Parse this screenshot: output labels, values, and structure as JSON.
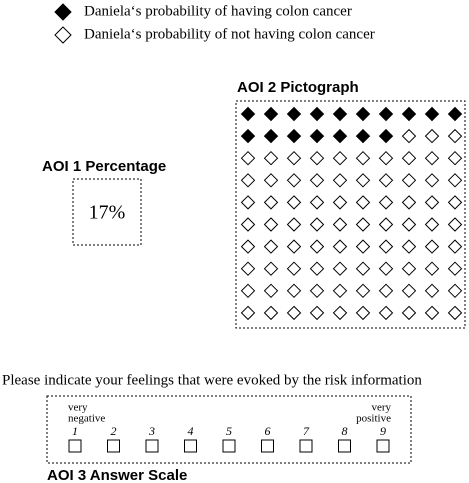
{
  "legend": [
    {
      "label": "Daniela‘s probability of having colon cancer"
    },
    {
      "label": "Daniela‘s probability of not having colon cancer"
    }
  ],
  "aoi1": {
    "title": "AOI 1 Percentage",
    "value": "17%"
  },
  "aoi2": {
    "title": "AOI 2 Pictograph"
  },
  "pictograph": {
    "filled": 17,
    "total": 100
  },
  "question": "Please indicate your feelings that were evoked by the risk information",
  "scale": {
    "low": [
      "very",
      "negative"
    ],
    "high": [
      "very",
      "positive"
    ],
    "points": [
      1,
      2,
      3,
      4,
      5,
      6,
      7,
      8,
      9
    ]
  },
  "aoi3": {
    "title": "AOI 3 Answer Scale"
  }
}
